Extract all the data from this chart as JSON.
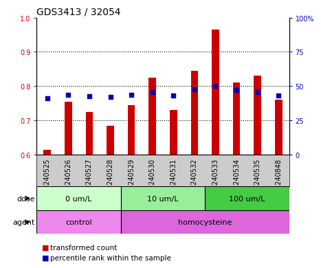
{
  "title": "GDS3413 / 32054",
  "categories": [
    "GSM240525",
    "GSM240526",
    "GSM240527",
    "GSM240528",
    "GSM240529",
    "GSM240530",
    "GSM240531",
    "GSM240532",
    "GSM240533",
    "GSM240534",
    "GSM240535",
    "GSM240848"
  ],
  "red_values": [
    0.615,
    0.755,
    0.725,
    0.685,
    0.745,
    0.825,
    0.73,
    0.845,
    0.965,
    0.81,
    0.83,
    0.76
  ],
  "blue_values": [
    0.765,
    0.775,
    0.77,
    0.768,
    0.775,
    0.783,
    0.773,
    0.79,
    0.8,
    0.788,
    0.783,
    0.773
  ],
  "ylim_min": 0.6,
  "ylim_max": 1.0,
  "y2lim_min": 0,
  "y2lim_max": 100,
  "y_ticks": [
    0.6,
    0.7,
    0.8,
    0.9,
    1.0
  ],
  "y2_ticks": [
    0,
    25,
    50,
    75,
    100
  ],
  "red_color": "#cc0000",
  "blue_color": "#0000bb",
  "dose_groups": [
    {
      "label": "0 um/L",
      "start": 0,
      "end": 4,
      "color": "#ccffcc"
    },
    {
      "label": "10 um/L",
      "start": 4,
      "end": 8,
      "color": "#99ee99"
    },
    {
      "label": "100 um/L",
      "start": 8,
      "end": 12,
      "color": "#44cc44"
    }
  ],
  "agent_groups": [
    {
      "label": "control",
      "start": 0,
      "end": 4,
      "color": "#ee88ee"
    },
    {
      "label": "homocysteine",
      "start": 4,
      "end": 12,
      "color": "#dd66dd"
    }
  ],
  "legend_items": [
    {
      "label": "transformed count",
      "color": "#cc0000"
    },
    {
      "label": "percentile rank within the sample",
      "color": "#0000bb"
    }
  ],
  "bar_width": 0.35,
  "background_color": "#ffffff",
  "plot_bg_color": "#ffffff",
  "xticklabel_bg": "#cccccc",
  "title_fontsize": 10,
  "tick_label_fontsize": 7,
  "annot_fontsize": 8
}
